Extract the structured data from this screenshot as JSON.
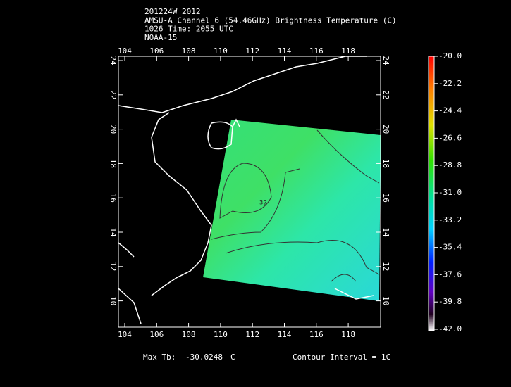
{
  "header": {
    "lines": [
      "201224W 2012",
      "AMSU-A Channel 6 (54.46GHz) Brightness Temperature (C)",
      "1026 Time: 2055 UTC",
      "NOAA-15"
    ]
  },
  "map": {
    "lon_ticks": [
      "104",
      "106",
      "108",
      "110",
      "112",
      "114",
      "116",
      "118"
    ],
    "lat_ticks": [
      "24",
      "22",
      "20",
      "18",
      "16",
      "14",
      "12",
      "10"
    ],
    "contour_label": "32"
  },
  "colorbar": {
    "labels": [
      "-20.0",
      "-22.2",
      "-24.4",
      "-26.6",
      "-28.8",
      "-31.0",
      "-33.2",
      "-35.4",
      "-37.6",
      "-39.8",
      "-42.0"
    ]
  },
  "footer": {
    "max_label": "Max Tb:",
    "max_value": "-30.0248",
    "max_unit": "C",
    "contour_interval": "Contour Interval = 1C"
  }
}
